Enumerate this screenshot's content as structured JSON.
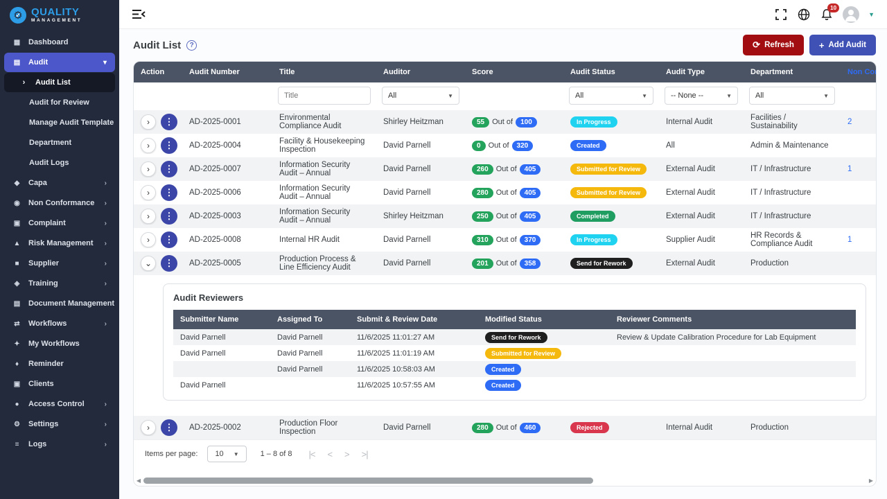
{
  "sidebar": {
    "logo_line1": "QUALITY",
    "logo_line2": "MANAGEMENT",
    "items": [
      {
        "label": "Dashboard",
        "icon": "dashboard-icon",
        "glyph": "▦",
        "variant": "top"
      },
      {
        "label": "Audit",
        "icon": "audit-icon",
        "glyph": "▤",
        "variant": "parent-active",
        "chevron": "▾"
      },
      {
        "label": "Audit List",
        "icon": "arrow-right-icon",
        "glyph": "›",
        "variant": "sub-active"
      },
      {
        "label": "Audit for Review",
        "variant": "sub"
      },
      {
        "label": "Manage Audit Template",
        "variant": "sub"
      },
      {
        "label": "Department",
        "variant": "sub"
      },
      {
        "label": "Audit Logs",
        "variant": "sub"
      },
      {
        "label": "Capa",
        "icon": "shield-icon",
        "glyph": "◆",
        "variant": "top",
        "chevron": "›"
      },
      {
        "label": "Non Conformance",
        "icon": "alert-circle-icon",
        "glyph": "◉",
        "variant": "top",
        "chevron": "›"
      },
      {
        "label": "Complaint",
        "icon": "message-icon",
        "glyph": "▣",
        "variant": "top",
        "chevron": "›"
      },
      {
        "label": "Risk Management",
        "icon": "warning-triangle-icon",
        "glyph": "▲",
        "variant": "top",
        "chevron": "›"
      },
      {
        "label": "Supplier",
        "icon": "truck-icon",
        "glyph": "■",
        "variant": "top",
        "chevron": "›"
      },
      {
        "label": "Training",
        "icon": "graduation-cap-icon",
        "glyph": "◈",
        "variant": "top",
        "chevron": "›"
      },
      {
        "label": "Document Management",
        "icon": "document-icon",
        "glyph": "▤",
        "variant": "top",
        "chevron": "›"
      },
      {
        "label": "Workflows",
        "icon": "workflow-icon",
        "glyph": "⇄",
        "variant": "top",
        "chevron": "›"
      },
      {
        "label": "My Workflows",
        "icon": "person-icon",
        "glyph": "✦",
        "variant": "top"
      },
      {
        "label": "Reminder",
        "icon": "bell-icon",
        "glyph": "♦",
        "variant": "top"
      },
      {
        "label": "Clients",
        "icon": "clients-icon",
        "glyph": "▣",
        "variant": "top"
      },
      {
        "label": "Access Control",
        "icon": "shield-lock-icon",
        "glyph": "●",
        "variant": "top",
        "chevron": "›"
      },
      {
        "label": "Settings",
        "icon": "gear-icon",
        "glyph": "⚙",
        "variant": "top",
        "chevron": "›"
      },
      {
        "label": "Logs",
        "icon": "list-icon",
        "glyph": "≡",
        "variant": "top",
        "chevron": "›"
      }
    ]
  },
  "topbar": {
    "notification_count": "10"
  },
  "page": {
    "title": "Audit List",
    "refresh_label": "Refresh",
    "add_icon": "+",
    "add_label": "Add Audit"
  },
  "table": {
    "columns": [
      "Action",
      "Audit Number",
      "Title",
      "Auditor",
      "Score",
      "Audit Status",
      "Audit Type",
      "Department",
      "Non Conformance"
    ],
    "filters": [
      {
        "col": 2,
        "type": "input",
        "placeholder": "Title"
      },
      {
        "col": 3,
        "type": "select",
        "value": "All"
      },
      {
        "col": 5,
        "type": "select",
        "value": "All"
      },
      {
        "col": 6,
        "type": "select",
        "value": "-- None --"
      },
      {
        "col": 7,
        "type": "select",
        "value": "All"
      }
    ],
    "out_of_label": "Out of",
    "rows": [
      {
        "number": "AD-2025-0001",
        "title": "Environmental Compliance Audit",
        "auditor": "Shirley Heitzman",
        "score": "55",
        "total": "100",
        "status": "In Progress",
        "type": "Internal Audit",
        "department": "Facilities / Sustainability",
        "noncon": "2",
        "expanded": false
      },
      {
        "number": "AD-2025-0004",
        "title": "Facility & Housekeeping Inspection",
        "auditor": "David Parnell",
        "score": "0",
        "total": "320",
        "status": "Created",
        "type": "All",
        "department": "Admin & Maintenance",
        "noncon": "",
        "expanded": false
      },
      {
        "number": "AD-2025-0007",
        "title": "Information Security Audit – Annual",
        "auditor": "David Parnell",
        "score": "260",
        "total": "405",
        "status": "Submitted for Review",
        "type": "External Audit",
        "department": "IT / Infrastructure",
        "noncon": "1",
        "expanded": false
      },
      {
        "number": "AD-2025-0006",
        "title": "Information Security Audit – Annual",
        "auditor": "David Parnell",
        "score": "280",
        "total": "405",
        "status": "Submitted for Review",
        "type": "External Audit",
        "department": "IT / Infrastructure",
        "noncon": "",
        "expanded": false
      },
      {
        "number": "AD-2025-0003",
        "title": "Information Security Audit – Annual",
        "auditor": "Shirley Heitzman",
        "score": "250",
        "total": "405",
        "status": "Completed",
        "type": "External Audit",
        "department": "IT / Infrastructure",
        "noncon": "",
        "expanded": false
      },
      {
        "number": "AD-2025-0008",
        "title": "Internal HR Audit",
        "auditor": "David Parnell",
        "score": "310",
        "total": "370",
        "status": "In Progress",
        "type": "Supplier Audit",
        "department": "HR Records & Compliance Audit",
        "noncon": "1",
        "expanded": false
      },
      {
        "number": "AD-2025-0005",
        "title": "Production Process & Line Efficiency Audit",
        "auditor": "David Parnell",
        "score": "201",
        "total": "358",
        "status": "Send for Rework",
        "type": "External Audit",
        "department": "Production",
        "noncon": "",
        "expanded": true
      },
      {
        "number": "AD-2025-0002",
        "title": "Production Floor Inspection",
        "auditor": "David Parnell",
        "score": "280",
        "total": "460",
        "status": "Rejected",
        "type": "Internal Audit",
        "department": "Production",
        "noncon": "",
        "expanded": false
      }
    ]
  },
  "reviewers": {
    "title": "Audit Reviewers",
    "columns": [
      "Submitter Name",
      "Assigned To",
      "Submit & Review Date",
      "Modified Status",
      "Reviewer Comments"
    ],
    "rows": [
      {
        "submitter": "David Parnell",
        "assigned": "David Parnell",
        "date": "11/6/2025 11:01:27 AM",
        "status": "Send for Rework",
        "comments": "Review & Update Calibration Procedure for Lab Equipment"
      },
      {
        "submitter": "David Parnell",
        "assigned": "David Parnell",
        "date": "11/6/2025 11:01:19 AM",
        "status": "Submitted for Review",
        "comments": ""
      },
      {
        "submitter": "",
        "assigned": "David Parnell",
        "date": "11/6/2025 10:58:03 AM",
        "status": "Created",
        "comments": ""
      },
      {
        "submitter": "David Parnell",
        "assigned": "",
        "date": "11/6/2025 10:57:55 AM",
        "status": "Created",
        "comments": ""
      }
    ]
  },
  "pagination": {
    "items_per_page_label": "Items per page:",
    "page_size": "10",
    "range": "1 – 8 of 8",
    "nav": [
      "|<",
      "<",
      ">",
      ">|"
    ]
  },
  "colors": {
    "score_value": "#23a35b",
    "score_total": "#2e6cf6",
    "noncon_link": "#2e6cf6",
    "refresh_button": "#a20d11",
    "add_button": "#3f51b5",
    "sidebar_active": "#4c57c9",
    "table_header": "#4b5464",
    "status": {
      "In Progress": "#1ed2f0",
      "Created": "#2e6cf6",
      "Submitted for Review": "#f5b80c",
      "Completed": "#209e62",
      "Send for Rework": "#1f1f1f",
      "Rejected": "#d8374e"
    }
  }
}
